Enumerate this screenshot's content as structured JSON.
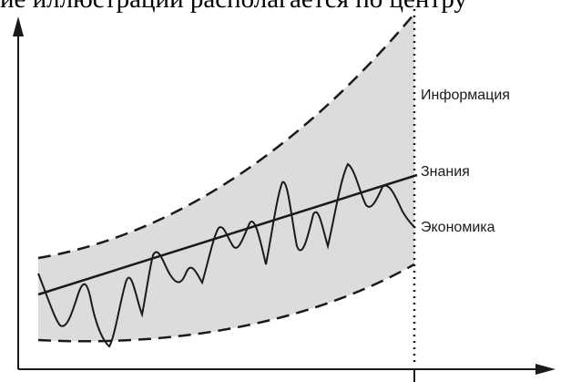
{
  "caption": "ие иллюстрации располагается по центру",
  "labels": {
    "information": "Информация",
    "knowledge": "Знания",
    "economy": "Экономика"
  },
  "colors": {
    "band_fill": "#dcdcdc",
    "ink": "#1a1a1a",
    "background": "#ffffff"
  }
}
